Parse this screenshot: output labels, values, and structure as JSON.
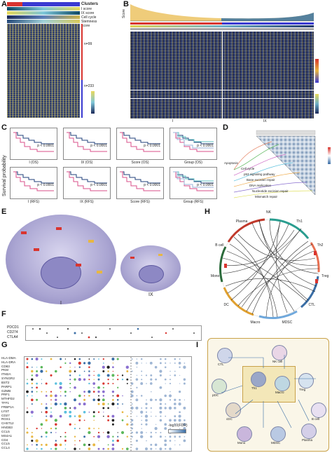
{
  "panel_labels": {
    "a": "A",
    "b": "B",
    "c": "C",
    "d": "D",
    "e": "E",
    "f": "F",
    "g": "G",
    "h": "H",
    "i": "I"
  },
  "panel_a": {
    "tracks": [
      "Clusters",
      "I score",
      "IX score",
      "Cell cycle",
      "Stemness score"
    ],
    "n_top": "n=99",
    "n_bottom": "n=233"
  },
  "panel_b": {
    "y_axis": "Score",
    "group_labels": [
      "I",
      "IX"
    ]
  },
  "panel_c": {
    "y_axis": "Survival probability",
    "plots": [
      {
        "x": "I (OS)",
        "p": "p < 0.0001"
      },
      {
        "x": "IX (OS)",
        "p": "p < 0.0001"
      },
      {
        "x": "Score (OS)",
        "p": "p < 0.0001"
      },
      {
        "x": "Group (OS)",
        "p": "p < 0.0001"
      },
      {
        "x": "I (RFS)",
        "p": "p < 0.0001"
      },
      {
        "x": "IX (RFS)",
        "p": "p < 0.0001"
      },
      {
        "x": "Score (RFS)",
        "p": "p < 0.0001"
      },
      {
        "x": "Group (RFS)",
        "p": "p < 0.0001"
      }
    ],
    "colors": {
      "high": "#d94f8a",
      "low": "#1f3f7a",
      "g3": "#5fc2c2",
      "g4": "#9bb3d8"
    }
  },
  "panel_d": {
    "pathways": [
      "Apoptosis",
      "Cell cycle",
      "p53 signaling pathway",
      "Base excision repair",
      "DNA replication",
      "Nucleotide excision repair",
      "Mismatch repair"
    ]
  },
  "panel_e": {
    "labels": [
      "I",
      "IX"
    ]
  },
  "panel_f": {
    "genes": [
      "PDCD1",
      "CD274",
      "CTLA4"
    ]
  },
  "panel_g": {
    "genes": [
      "HLA-DMA",
      "HLA-DRA",
      "CD83",
      "PKM",
      "ITM2A",
      "SYNGR2",
      "BST2",
      "PARP1",
      "GZMB",
      "PRF1",
      "MTHFD2",
      "TFF1",
      "FRBP1A",
      "LYST",
      "CD27",
      "RGS1",
      "CHST12",
      "HNGB3",
      "CCL5",
      "MS4A1",
      "CD4",
      "CCL5",
      "CCL4"
    ],
    "legend_title": "-log10(FDR)"
  },
  "panel_h": {
    "sectors": [
      "NK",
      "Th1",
      "Th2",
      "Treg",
      "CTL",
      "MDSC",
      "Macro",
      "DC",
      "Mono",
      "B cell",
      "Plasma"
    ]
  },
  "panel_i": {
    "labels": [
      "CTL",
      "NK cell",
      "pDC",
      "cDC",
      "Treg",
      "Th1",
      "B cell",
      "Plasma",
      "Mono",
      "MDSC",
      "Macro"
    ]
  }
}
